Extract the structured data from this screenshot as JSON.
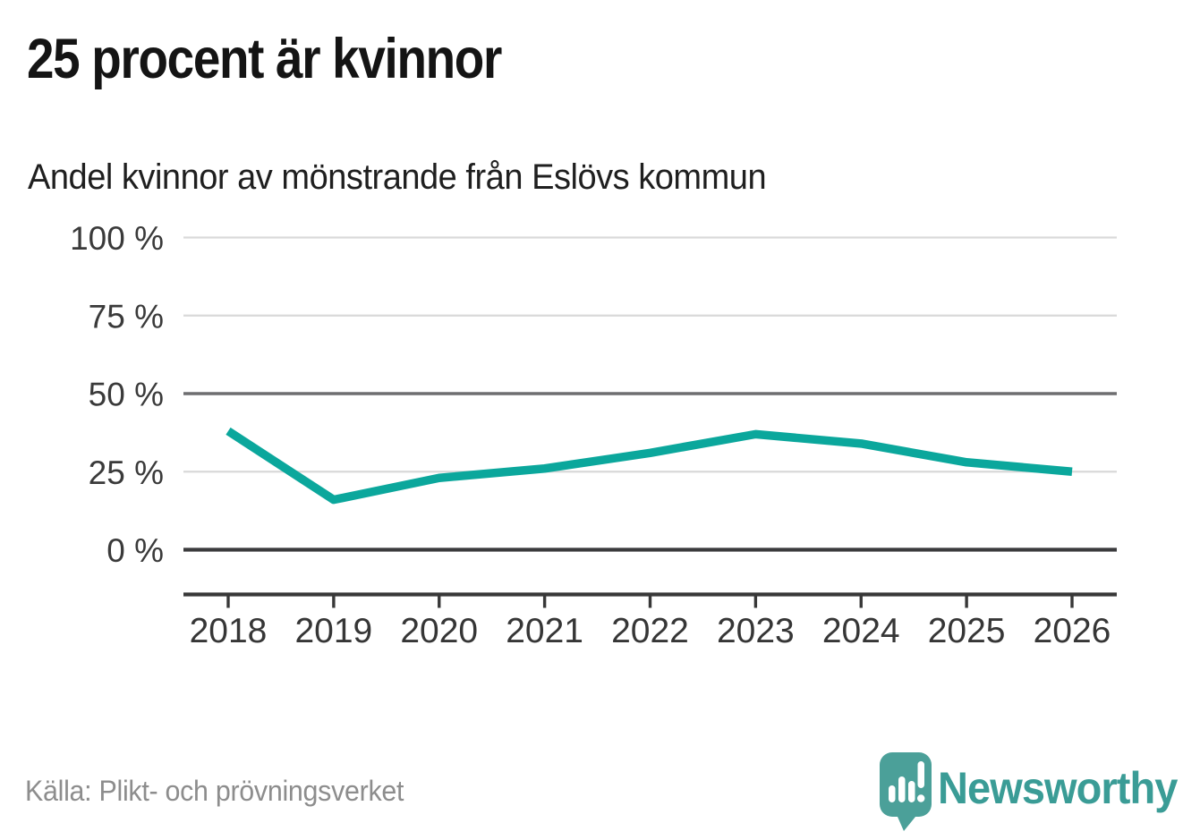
{
  "chart_data": {
    "type": "line",
    "title": "25 procent är kvinnor",
    "subtitle": "Andel kvinnor av mönstrande från Eslövs kommun",
    "x": [
      2018,
      2019,
      2020,
      2021,
      2022,
      2023,
      2024,
      2025,
      2026
    ],
    "series": [
      {
        "name": "Andel kvinnor av mönstrande",
        "values": [
          38,
          16,
          23,
          26,
          31,
          37,
          34,
          28,
          25
        ]
      }
    ],
    "ylim": [
      0,
      100
    ],
    "y_ticks": [
      0,
      25,
      50,
      75,
      100
    ],
    "y_tick_labels": [
      "0 %",
      "25 %",
      "50 %",
      "75 %",
      "100 %"
    ],
    "x_tick_labels": [
      "2018",
      "2019",
      "2020",
      "2021",
      "2022",
      "2023",
      "2024",
      "2025",
      "2026"
    ],
    "grid": "horizontal",
    "emphasized_gridline": 50,
    "baseline_gridline": 0,
    "legend": "none",
    "line_color": "#0ba79c"
  },
  "footer": {
    "source": "Källa: Plikt- och prövningsverket",
    "brand": "Newsworthy",
    "brand_color": "#3a9c96",
    "logo_icon": "speech-bubble-bar-chart-icon",
    "logo_color": "#4ba099"
  }
}
